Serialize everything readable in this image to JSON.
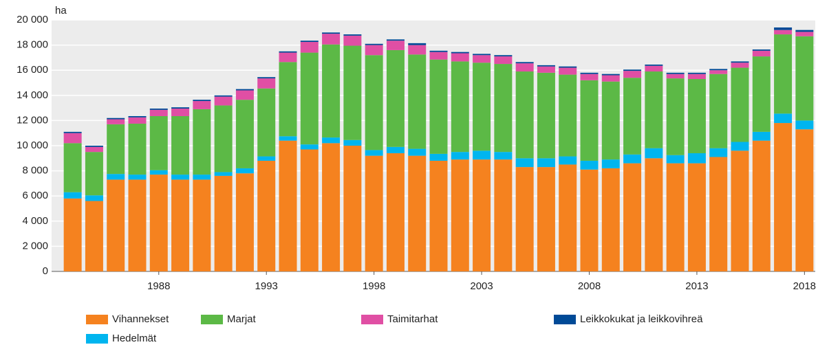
{
  "chart_data": {
    "type": "stacked_bar",
    "y_unit_label": "ha",
    "categories": [
      null,
      null,
      null,
      null,
      "1988",
      null,
      null,
      null,
      null,
      "1993",
      null,
      null,
      null,
      null,
      "1998",
      null,
      null,
      null,
      null,
      "2003",
      null,
      null,
      null,
      null,
      "2008",
      null,
      null,
      null,
      null,
      "2013",
      null,
      null,
      null,
      null,
      "2018"
    ],
    "series": [
      {
        "name": "Vihannekset",
        "color": "#f5821f",
        "values": [
          5800,
          5600,
          7300,
          7300,
          7700,
          7300,
          7300,
          7600,
          7800,
          8800,
          10400,
          9700,
          10200,
          10000,
          9200,
          9400,
          9200,
          8800,
          8900,
          8900,
          8900,
          8300,
          8300,
          8500,
          8100,
          8200,
          8600,
          9000,
          8600,
          8600,
          9100,
          9600,
          10400,
          11800,
          11300
        ]
      },
      {
        "name": "Hedelmät",
        "color": "#00b5ef",
        "values": [
          500,
          450,
          450,
          400,
          350,
          400,
          400,
          300,
          400,
          350,
          350,
          400,
          450,
          450,
          450,
          500,
          550,
          550,
          600,
          700,
          600,
          700,
          700,
          650,
          700,
          700,
          700,
          800,
          650,
          800,
          700,
          700,
          700,
          750,
          700
        ]
      },
      {
        "name": "Marjat",
        "color": "#5cb946",
        "values": [
          3900,
          3450,
          3950,
          4050,
          4300,
          4650,
          5200,
          5300,
          5450,
          5400,
          5900,
          7300,
          7400,
          7500,
          7550,
          7700,
          7500,
          7500,
          7200,
          7000,
          7000,
          6900,
          6800,
          6500,
          6400,
          6200,
          6100,
          6100,
          6100,
          5900,
          5900,
          5900,
          6000,
          6300,
          6700
        ]
      },
      {
        "name": "Taimitarhat",
        "color": "#e04fa4",
        "values": [
          800,
          400,
          400,
          500,
          500,
          600,
          650,
          700,
          750,
          800,
          750,
          850,
          850,
          800,
          800,
          750,
          750,
          600,
          650,
          600,
          600,
          650,
          500,
          550,
          500,
          500,
          550,
          450,
          350,
          400,
          300,
          400,
          450,
          350,
          350
        ]
      },
      {
        "name": "Leikkokukat ja leikkovihreä",
        "color": "#004a97",
        "values": [
          100,
          100,
          100,
          100,
          100,
          100,
          100,
          100,
          100,
          100,
          100,
          100,
          100,
          100,
          100,
          100,
          150,
          100,
          100,
          100,
          100,
          100,
          100,
          100,
          100,
          100,
          100,
          100,
          100,
          100,
          100,
          100,
          100,
          200,
          150
        ]
      }
    ],
    "ylim": [
      0,
      20000
    ],
    "yticks": [
      0,
      {
        "value": 2000,
        "label": "2 000"
      },
      {
        "value": 4000,
        "label": "4 000"
      },
      {
        "value": 6000,
        "label": "6 000"
      },
      {
        "value": 8000,
        "label": "8 000"
      },
      {
        "value": 10000,
        "label": "10 000"
      },
      {
        "value": 12000,
        "label": "12 000"
      },
      {
        "value": 14000,
        "label": "14 000"
      },
      {
        "value": 16000,
        "label": "16 000"
      },
      {
        "value": 18000,
        "label": "18 000"
      },
      {
        "value": 20000,
        "label": "20 000"
      }
    ],
    "grid": true
  }
}
